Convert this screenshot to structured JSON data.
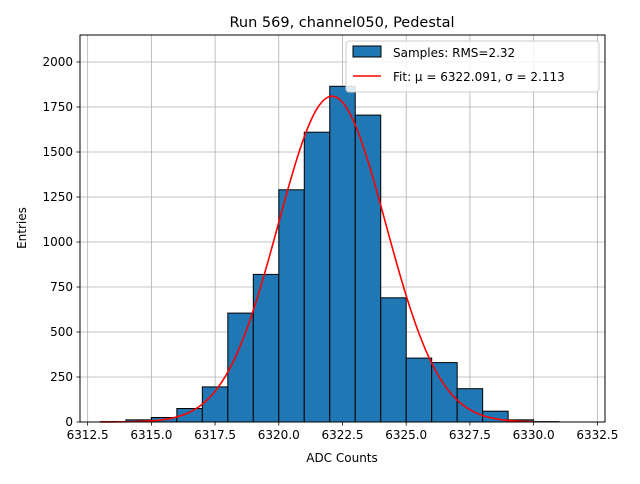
{
  "chart_data": {
    "type": "bar",
    "title": "Run 569, channel050, Pedestal",
    "xlabel": "ADC Counts",
    "ylabel": "Entries",
    "xlim": [
      6312.2,
      6332.8
    ],
    "ylim": [
      0,
      2150
    ],
    "xticks": [
      6312.5,
      6315.0,
      6317.5,
      6320.0,
      6322.5,
      6325.0,
      6327.5,
      6330.0,
      6332.5
    ],
    "xtick_labels": [
      "6312.5",
      "6315.0",
      "6317.5",
      "6320.0",
      "6322.5",
      "6325.0",
      "6327.5",
      "6330.0",
      "6332.5"
    ],
    "yticks": [
      0,
      250,
      500,
      750,
      1000,
      1250,
      1500,
      1750,
      2000
    ],
    "ytick_labels": [
      "0",
      "250",
      "500",
      "750",
      "1000",
      "1250",
      "1500",
      "1750",
      "2000"
    ],
    "grid": true,
    "legend_position": "top-right",
    "bins": {
      "edges": [
        6313,
        6314,
        6315,
        6316,
        6317,
        6318,
        6319,
        6320,
        6321,
        6322,
        6323,
        6324,
        6325,
        6326,
        6327,
        6328,
        6329,
        6330,
        6331,
        6332
      ],
      "counts": [
        2,
        12,
        25,
        75,
        195,
        605,
        820,
        1290,
        1610,
        1865,
        1705,
        690,
        355,
        330,
        185,
        60,
        12,
        2,
        0
      ]
    },
    "series": [
      {
        "name": "Samples: RMS=2.32",
        "kind": "histogram",
        "color": "#1f77b4",
        "edgecolor": "#000000"
      },
      {
        "name": "Fit: μ = 6322.091, σ = 2.113",
        "kind": "line",
        "color": "#ff0000",
        "mu": 6322.091,
        "sigma": 2.113,
        "amplitude": 1810,
        "x_range": [
          6313,
          6330
        ]
      }
    ]
  }
}
